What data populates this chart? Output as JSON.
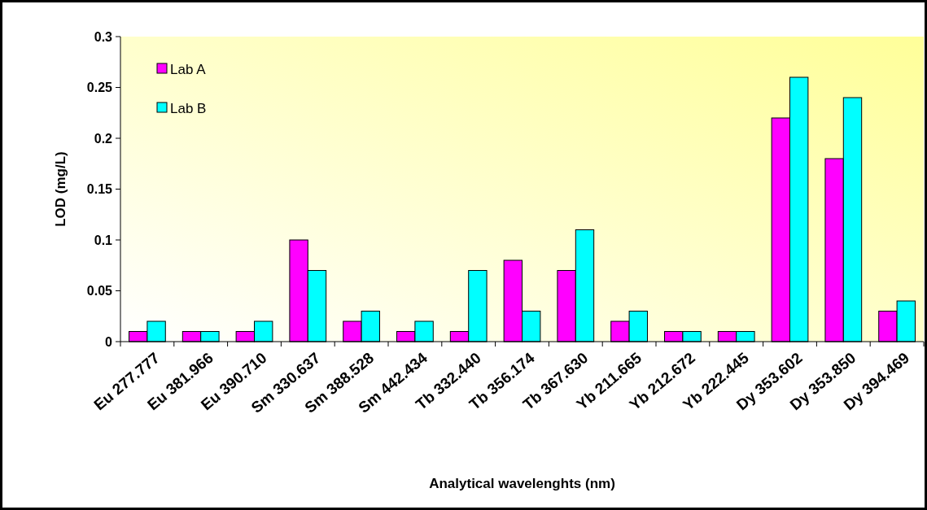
{
  "chart_data": {
    "type": "bar",
    "xlabel": "Analytical wavelenghts (nm)",
    "ylabel": "LOD (mg/L)",
    "categories": [
      "Eu 277.777",
      "Eu 381.966",
      "Eu 390.710",
      "Sm 330.637",
      "Sm 388.528",
      "Sm 442.434",
      "Tb 332.440",
      "Tb 356.174",
      "Tb 367.630",
      "Yb 211.665",
      "Yb 212.672",
      "Yb 222.445",
      "Dy 353.602",
      "Dy 353.850",
      "Dy 394.469"
    ],
    "series": [
      {
        "name": "Lab A",
        "color": "#ff00ff",
        "values": [
          0.01,
          0.01,
          0.01,
          0.1,
          0.02,
          0.01,
          0.01,
          0.08,
          0.07,
          0.02,
          0.01,
          0.01,
          0.22,
          0.18,
          0.03
        ]
      },
      {
        "name": "Lab B",
        "color": "#00ffff",
        "values": [
          0.02,
          0.01,
          0.02,
          0.07,
          0.03,
          0.02,
          0.07,
          0.03,
          0.11,
          0.03,
          0.01,
          0.01,
          0.26,
          0.24,
          0.04
        ]
      }
    ],
    "ylim": [
      0,
      0.3
    ],
    "yticks": [
      0,
      0.05,
      0.1,
      0.15,
      0.2,
      0.25,
      0.3
    ],
    "grid": false,
    "legend": "top left"
  }
}
